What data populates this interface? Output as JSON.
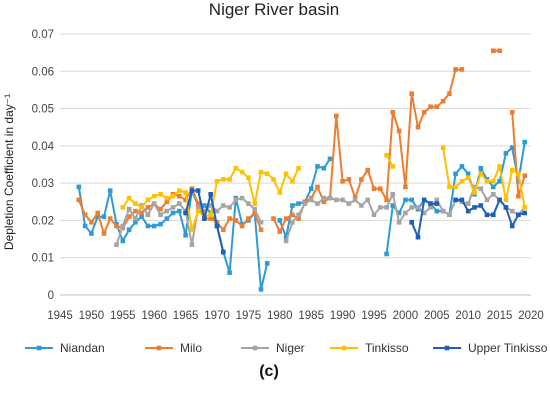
{
  "chart_data": {
    "type": "line",
    "title": "Niger River basin",
    "ylabel": "Depletion Coefficient in day⁻¹",
    "xlabel": "",
    "xlim": [
      1945,
      2020
    ],
    "ylim": [
      0,
      0.07
    ],
    "xticks": [
      "1945",
      "1950",
      "1955",
      "1960",
      "1965",
      "1970",
      "1975",
      "1980",
      "1985",
      "1990",
      "1995",
      "2000",
      "2005",
      "2010",
      "2015",
      "2020"
    ],
    "yticks": [
      "0",
      "0.01",
      "0.02",
      "0.03",
      "0.04",
      "0.05",
      "0.06",
      "0.07"
    ],
    "legend_position": "bottom",
    "grid": "horizontal",
    "series": [
      {
        "name": "Niandan",
        "color": "#2E9BD6",
        "segments": [
          [
            [
              1948,
              0.029
            ],
            [
              1949,
              0.0185
            ],
            [
              1950,
              0.0165
            ],
            [
              1951,
              0.021
            ],
            [
              1952,
              0.021
            ],
            [
              1953,
              0.028
            ],
            [
              1954,
              0.019
            ],
            [
              1955,
              0.0145
            ],
            [
              1956,
              0.0175
            ],
            [
              1957,
              0.0195
            ],
            [
              1958,
              0.021
            ],
            [
              1959,
              0.0185
            ],
            [
              1960,
              0.0185
            ],
            [
              1961,
              0.019
            ],
            [
              1962,
              0.0205
            ],
            [
              1963,
              0.022
            ],
            [
              1964,
              0.0225
            ],
            [
              1965,
              0.016
            ],
            [
              1966,
              0.028
            ],
            [
              1967,
              0.024
            ],
            [
              1968,
              0.024
            ],
            [
              1969,
              0.022
            ],
            [
              1970,
              0.0185
            ],
            [
              1971,
              0.0115
            ],
            [
              1972,
              0.006
            ],
            [
              1973,
              0.026
            ],
            [
              1974,
              0.019
            ],
            [
              1975,
              0.02
            ],
            [
              1976,
              0.022
            ],
            [
              1977,
              0.0015
            ],
            [
              1978,
              0.0085
            ]
          ],
          [
            [
              1980,
              0.02
            ],
            [
              1981,
              0.0155
            ],
            [
              1982,
              0.024
            ],
            [
              1983,
              0.0245
            ],
            [
              1984,
              0.025
            ],
            [
              1985,
              0.0285
            ],
            [
              1986,
              0.0345
            ],
            [
              1987,
              0.034
            ],
            [
              1988,
              0.0365
            ]
          ],
          [
            [
              1997,
              0.011
            ],
            [
              1998,
              0.024
            ],
            [
              1999,
              0.022
            ],
            [
              2000,
              0.0255
            ],
            [
              2001,
              0.0255
            ],
            [
              2002,
              0.023
            ],
            [
              2003,
              0.0255
            ],
            [
              2004,
              0.0245
            ],
            [
              2005,
              0.0225
            ],
            [
              2006,
              0.0225
            ],
            [
              2007,
              0.0215
            ],
            [
              2008,
              0.0325
            ],
            [
              2009,
              0.0345
            ],
            [
              2010,
              0.0325
            ],
            [
              2011,
              0.027
            ],
            [
              2012,
              0.034
            ],
            [
              2013,
              0.031
            ],
            [
              2014,
              0.029
            ],
            [
              2015,
              0.0305
            ],
            [
              2016,
              0.038
            ],
            [
              2017,
              0.0395
            ],
            [
              2018,
              0.0305
            ],
            [
              2019,
              0.041
            ]
          ]
        ]
      },
      {
        "name": "Milo",
        "color": "#ED7D31",
        "segments": [
          [
            [
              1948,
              0.0255
            ],
            [
              1949,
              0.0215
            ],
            [
              1950,
              0.0195
            ],
            [
              1951,
              0.022
            ],
            [
              1952,
              0.0165
            ],
            [
              1953,
              0.0205
            ],
            [
              1954,
              0.0185
            ],
            [
              1955,
              0.018
            ],
            [
              1956,
              0.021
            ],
            [
              1957,
              0.0225
            ],
            [
              1958,
              0.022
            ],
            [
              1959,
              0.0235
            ],
            [
              1960,
              0.0245
            ],
            [
              1961,
              0.023
            ],
            [
              1962,
              0.025
            ],
            [
              1963,
              0.027
            ],
            [
              1964,
              0.0265
            ],
            [
              1965,
              0.0255
            ],
            [
              1966,
              0.0285
            ],
            [
              1967,
              0.0245
            ],
            [
              1968,
              0.0205
            ],
            [
              1969,
              0.0205
            ],
            [
              1970,
              0.0195
            ],
            [
              1971,
              0.0175
            ],
            [
              1972,
              0.0205
            ],
            [
              1973,
              0.02
            ],
            [
              1974,
              0.0185
            ],
            [
              1975,
              0.0205
            ],
            [
              1976,
              0.022
            ],
            [
              1977,
              0.0175
            ]
          ],
          [
            [
              1979,
              0.0205
            ],
            [
              1980,
              0.017
            ],
            [
              1981,
              0.0205
            ],
            [
              1982,
              0.0215
            ],
            [
              1983,
              0.0205
            ],
            [
              1984,
              0.025
            ],
            [
              1985,
              0.026
            ],
            [
              1986,
              0.029
            ],
            [
              1987,
              0.025
            ],
            [
              1988,
              0.026
            ],
            [
              1989,
              0.048
            ],
            [
              1990,
              0.0305
            ],
            [
              1991,
              0.031
            ],
            [
              1992,
              0.026
            ],
            [
              1993,
              0.031
            ],
            [
              1994,
              0.0335
            ],
            [
              1995,
              0.0285
            ],
            [
              1996,
              0.0285
            ],
            [
              1997,
              0.0255
            ],
            [
              1998,
              0.049
            ],
            [
              1999,
              0.044
            ],
            [
              2000,
              0.029
            ],
            [
              2001,
              0.054
            ],
            [
              2002,
              0.045
            ],
            [
              2003,
              0.049
            ],
            [
              2004,
              0.0505
            ],
            [
              2005,
              0.0505
            ],
            [
              2006,
              0.052
            ],
            [
              2007,
              0.054
            ],
            [
              2008,
              0.0605
            ],
            [
              2009,
              0.0605
            ]
          ],
          [
            [
              2014,
              0.0655
            ],
            [
              2015,
              0.0655
            ]
          ],
          [
            [
              2017,
              0.049
            ],
            [
              2018,
              0.0265
            ],
            [
              2019,
              0.032
            ]
          ]
        ]
      },
      {
        "name": "Niger",
        "color": "#A5A5A5",
        "segments": [
          [
            [
              1954,
              0.0135
            ],
            [
              1955,
              0.0185
            ],
            [
              1956,
              0.023
            ],
            [
              1957,
              0.0205
            ],
            [
              1958,
              0.024
            ],
            [
              1959,
              0.0215
            ],
            [
              1960,
              0.0245
            ],
            [
              1961,
              0.0215
            ],
            [
              1962,
              0.0225
            ],
            [
              1963,
              0.0235
            ],
            [
              1964,
              0.0245
            ],
            [
              1965,
              0.0225
            ],
            [
              1966,
              0.0135
            ],
            [
              1967,
              0.0235
            ],
            [
              1968,
              0.0225
            ],
            [
              1969,
              0.024
            ],
            [
              1970,
              0.0225
            ],
            [
              1971,
              0.024
            ],
            [
              1972,
              0.0235
            ],
            [
              1973,
              0.0255
            ],
            [
              1974,
              0.026
            ],
            [
              1975,
              0.0245
            ],
            [
              1976,
              0.023
            ],
            [
              1977,
              0.0195
            ]
          ],
          [
            [
              1981,
              0.0145
            ],
            [
              1982,
              0.0195
            ],
            [
              1983,
              0.0215
            ],
            [
              1984,
              0.0245
            ],
            [
              1985,
              0.0255
            ],
            [
              1986,
              0.0245
            ],
            [
              1987,
              0.026
            ],
            [
              1988,
              0.026
            ],
            [
              1989,
              0.0255
            ],
            [
              1990,
              0.0255
            ],
            [
              1991,
              0.0245
            ],
            [
              1992,
              0.0255
            ],
            [
              1993,
              0.024
            ],
            [
              1994,
              0.0255
            ],
            [
              1995,
              0.0215
            ],
            [
              1996,
              0.0235
            ],
            [
              1997,
              0.0235
            ],
            [
              1998,
              0.027
            ],
            [
              1999,
              0.0195
            ],
            [
              2000,
              0.022
            ],
            [
              2001,
              0.0235
            ],
            [
              2002,
              0.0235
            ],
            [
              2003,
              0.022
            ],
            [
              2004,
              0.0235
            ],
            [
              2005,
              0.0255
            ],
            [
              2006,
              0.0225
            ],
            [
              2007,
              0.0215
            ],
            [
              2008,
              0.0255
            ],
            [
              2009,
              0.025
            ],
            [
              2010,
              0.0245
            ],
            [
              2011,
              0.029
            ],
            [
              2012,
              0.0285
            ],
            [
              2013,
              0.0255
            ],
            [
              2014,
              0.027
            ],
            [
              2015,
              0.0255
            ],
            [
              2016,
              0.0235
            ],
            [
              2017,
              0.0225
            ],
            [
              2018,
              0.0215
            ],
            [
              2019,
              0.0235
            ]
          ]
        ]
      },
      {
        "name": "Tinkisso",
        "color": "#FFC000",
        "segments": [
          [
            [
              1955,
              0.0235
            ],
            [
              1956,
              0.026
            ],
            [
              1957,
              0.0245
            ],
            [
              1958,
              0.0235
            ],
            [
              1959,
              0.0255
            ],
            [
              1960,
              0.0265
            ],
            [
              1961,
              0.027
            ],
            [
              1962,
              0.026
            ],
            [
              1963,
              0.0265
            ],
            [
              1964,
              0.028
            ],
            [
              1965,
              0.0275
            ],
            [
              1966,
              0.0175
            ],
            [
              1967,
              0.0225
            ],
            [
              1968,
              0.021
            ],
            [
              1969,
              0.0215
            ],
            [
              1970,
              0.0305
            ],
            [
              1971,
              0.031
            ],
            [
              1972,
              0.031
            ],
            [
              1973,
              0.034
            ],
            [
              1974,
              0.033
            ],
            [
              1975,
              0.0315
            ],
            [
              1976,
              0.0245
            ],
            [
              1977,
              0.033
            ],
            [
              1978,
              0.0325
            ],
            [
              1979,
              0.031
            ],
            [
              1980,
              0.0275
            ],
            [
              1981,
              0.0325
            ],
            [
              1982,
              0.0305
            ],
            [
              1983,
              0.034
            ]
          ],
          [
            [
              1997,
              0.0375
            ],
            [
              1998,
              0.0345
            ]
          ],
          [
            [
              2006,
              0.0395
            ],
            [
              2007,
              0.029
            ],
            [
              2008,
              0.029
            ],
            [
              2009,
              0.0305
            ],
            [
              2010,
              0.0315
            ],
            [
              2011,
              0.0275
            ],
            [
              2012,
              0.0325
            ],
            [
              2013,
              0.0305
            ],
            [
              2014,
              0.0305
            ],
            [
              2015,
              0.0345
            ],
            [
              2016,
              0.0255
            ],
            [
              2017,
              0.0335
            ],
            [
              2018,
              0.0325
            ],
            [
              2019,
              0.0235
            ]
          ]
        ]
      },
      {
        "name": "Upper Tinkisso",
        "color": "#1F5FB8",
        "segments": [
          [
            [
              1965,
              0.022
            ],
            [
              1966,
              0.028
            ],
            [
              1967,
              0.028
            ],
            [
              1968,
              0.0205
            ],
            [
              1969,
              0.027
            ],
            [
              1970,
              0.0185
            ],
            [
              1971,
              0.0115
            ]
          ],
          [
            [
              2001,
              0.0195
            ],
            [
              2002,
              0.0155
            ],
            [
              2003,
              0.0255
            ],
            [
              2004,
              0.0245
            ],
            [
              2005,
              0.0245
            ]
          ],
          [
            [
              2008,
              0.0255
            ],
            [
              2009,
              0.0255
            ],
            [
              2010,
              0.0225
            ],
            [
              2011,
              0.0235
            ],
            [
              2012,
              0.024
            ],
            [
              2013,
              0.0215
            ],
            [
              2014,
              0.0215
            ],
            [
              2015,
              0.0255
            ],
            [
              2016,
              0.0235
            ],
            [
              2017,
              0.0185
            ],
            [
              2018,
              0.0215
            ],
            [
              2019,
              0.022
            ]
          ]
        ]
      }
    ]
  },
  "caption": "(c)"
}
